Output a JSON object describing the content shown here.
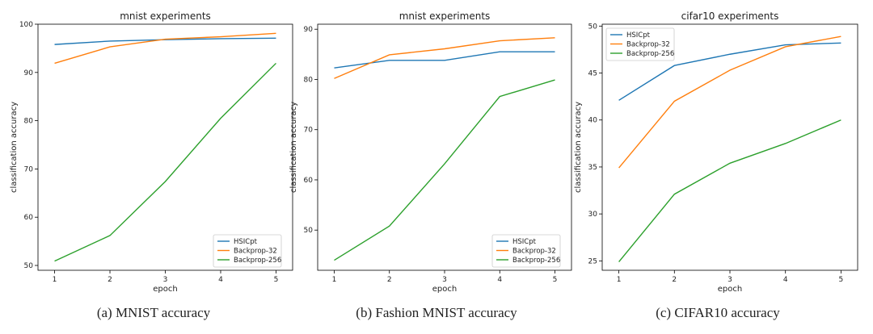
{
  "chart_data": [
    {
      "type": "line",
      "title": "mnist experiments",
      "xlabel": "epoch",
      "ylabel": "classification accuracy",
      "caption": "(a) MNIST accuracy",
      "x": [
        1,
        2,
        3,
        4,
        5
      ],
      "ylim": [
        49,
        100
      ],
      "yticks": [
        50,
        60,
        70,
        80,
        90,
        100
      ],
      "legend_position": "lower-right",
      "series": [
        {
          "name": "HSICpt",
          "color": "#1f77b4",
          "values": [
            95.8,
            96.5,
            96.8,
            97.0,
            97.1
          ]
        },
        {
          "name": "Backprop-32",
          "color": "#ff7f0e",
          "values": [
            91.9,
            95.3,
            96.9,
            97.4,
            98.1
          ]
        },
        {
          "name": "Backprop-256",
          "color": "#2ca02c",
          "values": [
            50.9,
            56.2,
            67.4,
            80.5,
            91.9
          ]
        }
      ]
    },
    {
      "type": "line",
      "title": "mnist experiments",
      "xlabel": "epoch",
      "ylabel": "classification accuracy",
      "caption": "(b) Fashion MNIST accuracy",
      "x": [
        1,
        2,
        3,
        4,
        5
      ],
      "ylim": [
        42,
        91
      ],
      "yticks": [
        50,
        60,
        70,
        80,
        90
      ],
      "legend_position": "lower-right",
      "series": [
        {
          "name": "HSICpt",
          "color": "#1f77b4",
          "values": [
            82.3,
            83.8,
            83.8,
            85.5,
            85.5
          ]
        },
        {
          "name": "Backprop-32",
          "color": "#ff7f0e",
          "values": [
            80.2,
            84.9,
            86.1,
            87.7,
            88.3
          ]
        },
        {
          "name": "Backprop-256",
          "color": "#2ca02c",
          "values": [
            44.0,
            50.8,
            63.2,
            76.6,
            79.9
          ]
        }
      ]
    },
    {
      "type": "line",
      "title": "cifar10 experiments",
      "xlabel": "epoch",
      "ylabel": "classification accuracy",
      "caption": "(c) CIFAR10 accuracy",
      "x": [
        1,
        2,
        3,
        4,
        5
      ],
      "ylim": [
        24,
        50.2
      ],
      "yticks": [
        25,
        30,
        35,
        40,
        45,
        50
      ],
      "legend_position": "upper-left",
      "series": [
        {
          "name": "HSICpt",
          "color": "#1f77b4",
          "values": [
            42.1,
            45.8,
            47.0,
            48.0,
            48.2
          ]
        },
        {
          "name": "Backprop-32",
          "color": "#ff7f0e",
          "values": [
            34.9,
            42.0,
            45.3,
            47.8,
            48.9
          ]
        },
        {
          "name": "Backprop-256",
          "color": "#2ca02c",
          "values": [
            24.9,
            32.1,
            35.4,
            37.5,
            40.0
          ]
        }
      ]
    }
  ]
}
